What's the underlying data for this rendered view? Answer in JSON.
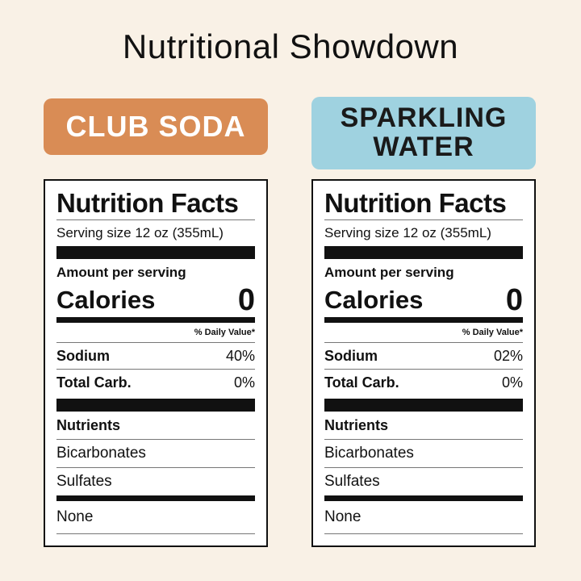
{
  "page": {
    "title": "Nutritional Showdown"
  },
  "products": [
    {
      "name": "CLUB SODA",
      "banner_color": "#d98c55",
      "label": {
        "title": "Nutrition Facts",
        "serving_size": "Serving size 12 oz (355mL)",
        "amount_per_serving": "Amount per serving",
        "calories_label": "Calories",
        "calories_value": "0",
        "daily_value_header": "% Daily Value*",
        "rows": [
          {
            "name": "Sodium",
            "value": "40%"
          },
          {
            "name": "Total Carb.",
            "value": "0%"
          }
        ],
        "nutrients_header": "Nutrients",
        "nutrients": [
          "Bicarbonates",
          "Sulfates"
        ],
        "other": "None"
      }
    },
    {
      "name": "SPARKLING WATER",
      "banner_color": "#9fd2e0",
      "label": {
        "title": "Nutrition Facts",
        "serving_size": "Serving size 12 oz (355mL)",
        "amount_per_serving": "Amount per serving",
        "calories_label": "Calories",
        "calories_value": "0",
        "daily_value_header": "% Daily Value*",
        "rows": [
          {
            "name": "Sodium",
            "value": "02%"
          },
          {
            "name": "Total Carb.",
            "value": "0%"
          }
        ],
        "nutrients_header": "Nutrients",
        "nutrients": [
          "Bicarbonates",
          "Sulfates"
        ],
        "other": "None"
      }
    }
  ],
  "colors": {
    "background": "#f9f1e6",
    "ink": "#111111"
  }
}
